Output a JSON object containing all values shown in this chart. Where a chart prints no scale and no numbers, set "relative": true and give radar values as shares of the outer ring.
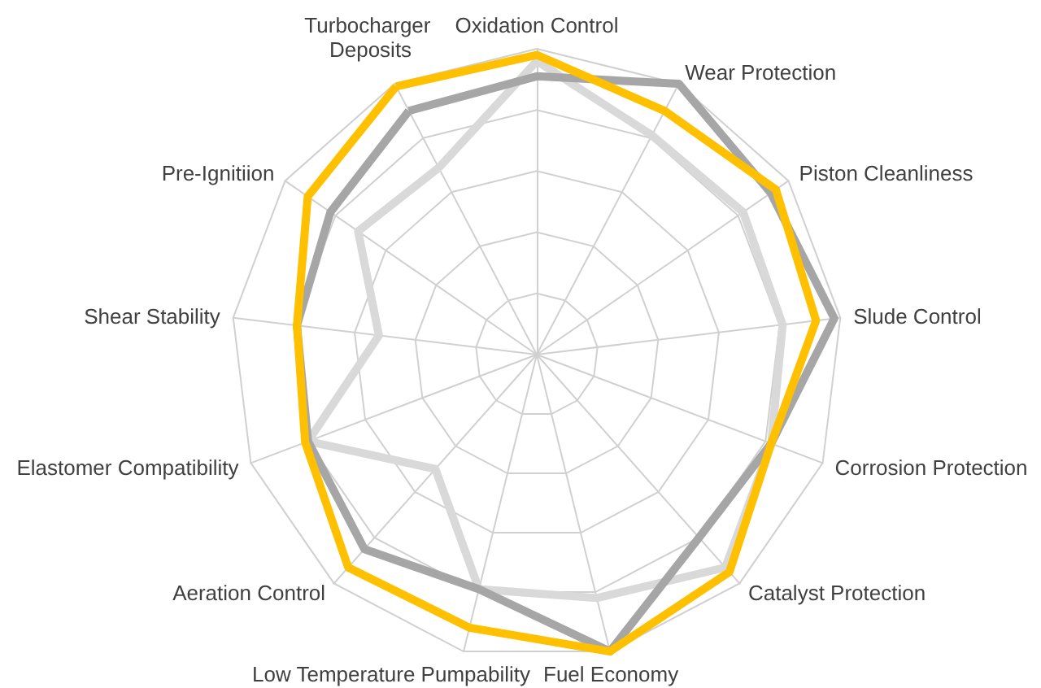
{
  "chart_data": {
    "type": "radar",
    "relative": true,
    "grid": true,
    "categories": [
      "Oxidation Control",
      "Wear Protection",
      "Piston Cleanliness",
      "Slude Control",
      "Corrosion Protection",
      "Catalyst Protection",
      "Fuel Economy",
      "Low Temperature Pumpability",
      "Aeration Control",
      "Elastomer Compatibility",
      "Shear Stability",
      "Pre-Ignitiion",
      "Turbocharger Deposits"
    ],
    "series": [
      {
        "color": "#d9d9d9",
        "values": [
          0.96,
          0.81,
          0.82,
          0.81,
          0.82,
          0.93,
          0.82,
          0.79,
          0.5,
          0.8,
          0.52,
          0.71,
          0.69
        ]
      },
      {
        "color": "#a6a6a6",
        "values": [
          0.91,
          1.0,
          0.93,
          0.98,
          0.82,
          0.8,
          1.0,
          0.79,
          0.85,
          0.8,
          0.79,
          0.82,
          0.9
        ]
      },
      {
        "color": "#ffc000",
        "values": [
          0.98,
          0.9,
          0.95,
          0.92,
          0.82,
          0.95,
          1.0,
          0.92,
          0.93,
          0.81,
          0.79,
          0.91,
          0.99
        ]
      }
    ]
  }
}
